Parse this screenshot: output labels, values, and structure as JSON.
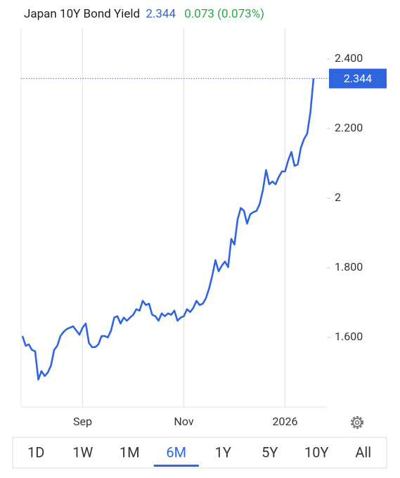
{
  "header": {
    "title": "Japan 10Y Bond Yield",
    "price": "2.344",
    "change": "0.073 (0.073%)"
  },
  "chart_data": {
    "type": "line",
    "categories": [
      null,
      null,
      null,
      null,
      null,
      null,
      null,
      null,
      null,
      null,
      null,
      null,
      null,
      null,
      null,
      null,
      null,
      null,
      null,
      "Sep",
      null,
      null,
      null,
      null,
      null,
      null,
      null,
      null,
      null,
      null,
      null,
      null,
      null,
      null,
      null,
      null,
      null,
      null,
      null,
      null,
      null,
      null,
      null,
      null,
      null,
      null,
      null,
      null,
      null,
      null,
      null,
      "Nov",
      null,
      null,
      null,
      null,
      null,
      null,
      null,
      null,
      null,
      null,
      null,
      null,
      null,
      null,
      null,
      null,
      null,
      null,
      null,
      null,
      null,
      null,
      null,
      null,
      null,
      null,
      null,
      null,
      null,
      null,
      null,
      "2026",
      null,
      null,
      null,
      null,
      null,
      null,
      null,
      null,
      null
    ],
    "series": [
      {
        "color": "#2f66e0",
        "values": [
          1.604,
          1.576,
          1.58,
          1.564,
          1.56,
          1.479,
          1.503,
          1.489,
          1.499,
          1.519,
          1.564,
          1.576,
          1.604,
          1.616,
          1.624,
          1.628,
          1.632,
          1.62,
          1.608,
          1.628,
          1.64,
          1.584,
          1.572,
          1.572,
          1.58,
          1.604,
          1.604,
          1.6,
          1.62,
          1.657,
          1.661,
          1.64,
          1.657,
          1.648,
          1.657,
          1.665,
          1.681,
          1.677,
          1.705,
          1.693,
          1.697,
          1.665,
          1.661,
          1.648,
          1.669,
          1.661,
          1.669,
          1.665,
          1.677,
          1.648,
          1.657,
          1.661,
          1.681,
          1.673,
          1.685,
          1.705,
          1.693,
          1.697,
          1.713,
          1.741,
          1.778,
          1.822,
          1.79,
          1.806,
          1.818,
          1.802,
          1.883,
          1.867,
          1.939,
          1.972,
          1.964,
          1.927,
          1.954,
          1.96,
          1.964,
          1.984,
          2.024,
          2.081,
          2.04,
          2.048,
          2.04,
          2.061,
          2.077,
          2.077,
          2.109,
          2.133,
          2.093,
          2.097,
          2.145,
          2.17,
          2.186,
          2.246,
          2.344
        ]
      }
    ],
    "ylim": [
      1.4,
      2.45
    ],
    "yticks": [
      {
        "value": 1.6,
        "label": "1.600"
      },
      {
        "value": 1.8,
        "label": "1.800"
      },
      2,
      {
        "value": 2.2,
        "label": "2.200"
      },
      {
        "value": 2.4,
        "label": "2.400"
      }
    ],
    "grid": true
  },
  "tabs": {
    "items": [
      "1D",
      "1W",
      "1M",
      "6M",
      "1Y",
      "5Y",
      "10Y",
      "All"
    ],
    "selected": 3
  }
}
